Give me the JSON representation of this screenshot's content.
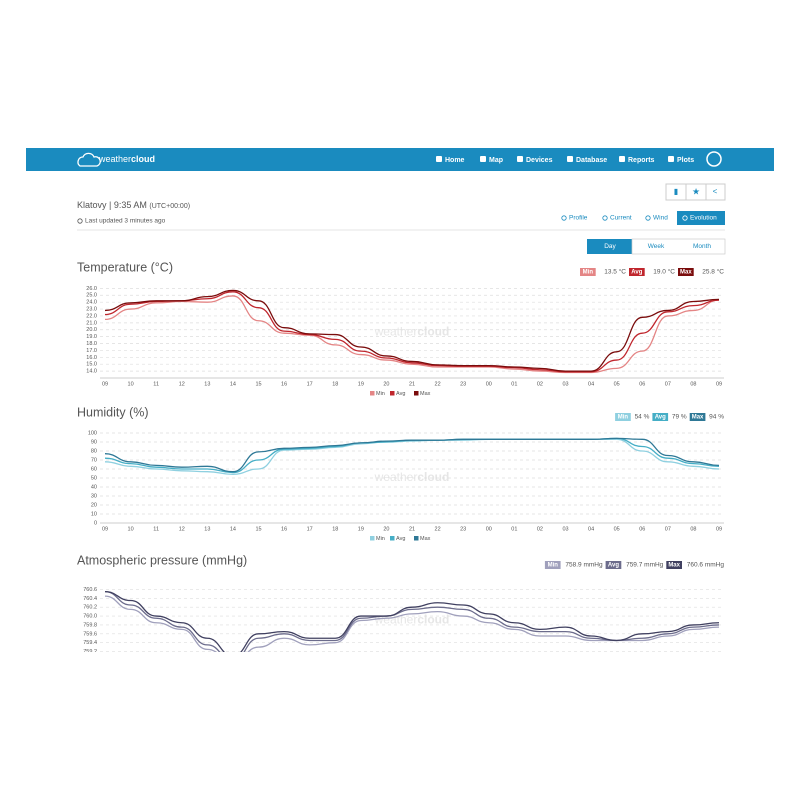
{
  "brand": {
    "light": "weather",
    "bold": "cloud"
  },
  "nav": [
    "Home",
    "Map",
    "Devices",
    "Database",
    "Reports",
    "Plots"
  ],
  "station": {
    "name": "Klatovy | 9:35 AM",
    "timezone": "(UTC+00:00)",
    "updated": "Last updated 3 minutes ago"
  },
  "tabs": [
    "Profile",
    "Current",
    "Wind",
    "Evolution"
  ],
  "periods": [
    "Day",
    "Week",
    "Month"
  ],
  "chart_data": [
    {
      "type": "line",
      "title": "Temperature (°C)",
      "summary": [
        {
          "label": "Min",
          "value": "13.5 °C"
        },
        {
          "label": "Avg",
          "value": "19.0 °C"
        },
        {
          "label": "Max",
          "value": "25.8 °C"
        }
      ],
      "categories": [
        "09",
        "10",
        "11",
        "12",
        "13",
        "14",
        "15",
        "16",
        "17",
        "18",
        "19",
        "20",
        "21",
        "22",
        "23",
        "00",
        "01",
        "02",
        "03",
        "04",
        "05",
        "06",
        "07",
        "08",
        "09"
      ],
      "ylim": [
        13,
        26.2
      ],
      "yticks": [
        {
          "value": 14,
          "label": "14.0"
        },
        {
          "value": 15,
          "label": "15.0"
        },
        {
          "value": 16,
          "label": "16.0"
        },
        {
          "value": 17,
          "label": "17.0"
        },
        {
          "value": 18,
          "label": "18.0"
        },
        {
          "value": 19,
          "label": "19.0"
        },
        {
          "value": 20,
          "label": "20.0"
        },
        {
          "value": 21,
          "label": "21.0"
        },
        {
          "value": 22,
          "label": "22.0"
        },
        {
          "value": 23,
          "label": "23.0"
        },
        {
          "value": 24,
          "label": "24.0"
        },
        {
          "value": 25,
          "label": "25.0"
        },
        {
          "value": 26,
          "label": "26.0"
        }
      ],
      "grid": true,
      "series": [
        {
          "name": "Min",
          "color": "#e48585",
          "values": [
            21.5,
            23.0,
            23.9,
            24.1,
            24.0,
            24.9,
            21.3,
            19.5,
            19.2,
            17.8,
            16.4,
            15.6,
            15.0,
            14.6,
            14.6,
            14.6,
            14.3,
            14.0,
            13.8,
            13.8,
            14.4,
            16.9,
            22.0,
            22.8,
            24.3
          ]
        },
        {
          "name": "Avg",
          "color": "#c0262d",
          "values": [
            22.2,
            23.7,
            24.1,
            24.2,
            24.5,
            25.5,
            23.2,
            19.8,
            19.3,
            18.6,
            16.9,
            15.9,
            15.2,
            14.8,
            14.7,
            14.7,
            14.5,
            14.2,
            13.9,
            13.9,
            15.6,
            19.5,
            22.6,
            23.5,
            24.3
          ]
        },
        {
          "name": "Max",
          "color": "#7a0c0c",
          "values": [
            22.8,
            23.9,
            24.2,
            24.2,
            24.8,
            25.7,
            24.2,
            20.3,
            19.4,
            19.3,
            17.5,
            16.2,
            15.4,
            14.9,
            14.8,
            14.8,
            14.6,
            14.4,
            14.0,
            14.0,
            16.8,
            21.8,
            22.8,
            24.1,
            24.4
          ]
        }
      ]
    },
    {
      "type": "line",
      "title": "Humidity (%)",
      "summary": [
        {
          "label": "Min",
          "value": "54 %"
        },
        {
          "label": "Avg",
          "value": "79 %"
        },
        {
          "label": "Max",
          "value": "94 %"
        }
      ],
      "categories": [
        "09",
        "10",
        "11",
        "12",
        "13",
        "14",
        "15",
        "16",
        "17",
        "18",
        "19",
        "20",
        "21",
        "22",
        "23",
        "00",
        "01",
        "02",
        "03",
        "04",
        "05",
        "06",
        "07",
        "08",
        "09"
      ],
      "ylim": [
        0,
        100
      ],
      "yticks": [
        0,
        10,
        20,
        30,
        40,
        50,
        60,
        70,
        80,
        90,
        100
      ],
      "grid": true,
      "series": [
        {
          "name": "Min",
          "color": "#8fd0e0",
          "values": [
            68,
            63,
            60,
            58,
            57,
            54,
            60,
            81,
            82,
            84,
            88,
            90,
            91,
            92,
            92,
            93,
            93,
            93,
            93,
            93,
            93,
            80,
            68,
            63,
            60
          ]
        },
        {
          "name": "Avg",
          "color": "#45aec6",
          "values": [
            72,
            66,
            62,
            60,
            60,
            56,
            70,
            82,
            83,
            85,
            89,
            90,
            92,
            92,
            93,
            93,
            93,
            93,
            93,
            93,
            94,
            85,
            72,
            66,
            63
          ]
        },
        {
          "name": "Max",
          "color": "#2e7896",
          "values": [
            77,
            68,
            64,
            62,
            63,
            57,
            79,
            83,
            84,
            86,
            89,
            91,
            92,
            92,
            93,
            93,
            93,
            93,
            93,
            93,
            94,
            93,
            75,
            68,
            64
          ]
        }
      ]
    },
    {
      "type": "line",
      "title": "Atmospheric pressure (mmHg)",
      "summary": [
        {
          "label": "Min",
          "value": "758.9 mmHg"
        },
        {
          "label": "Avg",
          "value": "759.7 mmHg"
        },
        {
          "label": "Max",
          "value": "760.6 mmHg"
        }
      ],
      "ylim": [
        759.1,
        760.7
      ],
      "yticks": [
        760.6,
        760.4,
        760.2,
        {
          "value": 760,
          "label": "760.0"
        },
        759.8,
        759.6,
        759.4,
        759.2
      ],
      "grid": true,
      "series": [
        {
          "name": "Min",
          "color": "#a0a0bc",
          "values": [
            760.45,
            760.15,
            759.85,
            759.7,
            759.25,
            758.95,
            759.3,
            759.5,
            759.35,
            759.4,
            759.9,
            759.95,
            760.05,
            760.1,
            760.0,
            759.85,
            759.7,
            759.55,
            759.55,
            759.45,
            759.45,
            759.45,
            759.55,
            759.7,
            759.75
          ]
        },
        {
          "name": "Avg",
          "color": "#6c6c8c",
          "values": [
            760.55,
            760.25,
            759.95,
            759.75,
            759.35,
            759.0,
            759.5,
            759.6,
            759.45,
            759.45,
            759.95,
            760.0,
            760.15,
            760.2,
            760.15,
            759.95,
            759.75,
            759.65,
            759.65,
            759.5,
            759.45,
            759.5,
            759.6,
            759.75,
            759.8
          ]
        },
        {
          "name": "Max",
          "color": "#404060",
          "values": [
            760.55,
            760.35,
            760.0,
            759.85,
            759.5,
            759.1,
            759.6,
            759.65,
            759.5,
            759.5,
            760.0,
            760.0,
            760.2,
            760.3,
            760.25,
            760.05,
            759.85,
            759.7,
            759.75,
            759.55,
            759.45,
            759.6,
            759.65,
            759.8,
            759.85
          ]
        }
      ]
    }
  ]
}
